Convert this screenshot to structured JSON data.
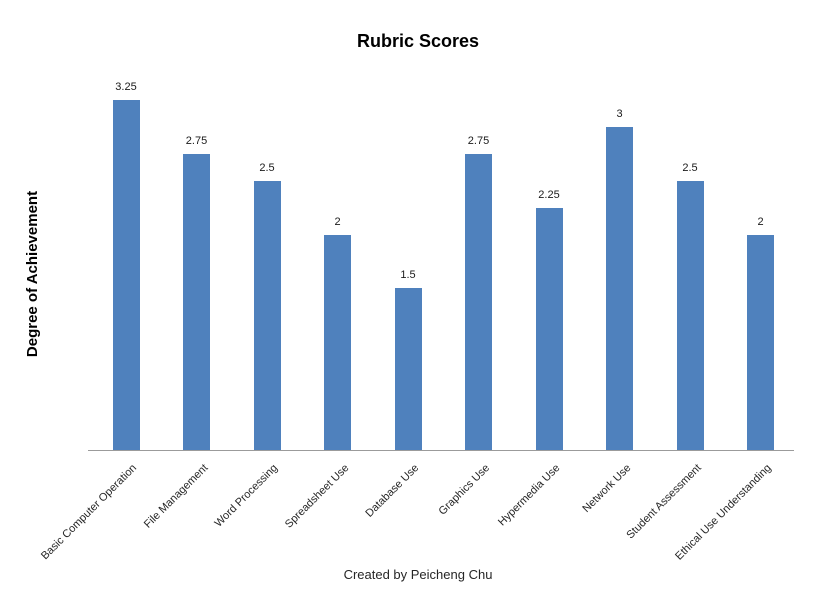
{
  "chart": {
    "title": "Rubric Scores",
    "y_axis_label": "Degree of Achievement",
    "caption": "Created by Peicheng Chu"
  },
  "chart_data": {
    "type": "bar",
    "title": "Rubric Scores",
    "xlabel": "",
    "ylabel": "Degree of Achievement",
    "caption": "Created by Peicheng Chu",
    "categories": [
      "Basic Computer Operation",
      "File Management",
      "Word Processing",
      "Spreadsheet Use",
      "Database Use",
      "Graphics Use",
      "Hypermedia Use",
      "Network Use",
      "Student Assessment",
      "Ethical Use Understanding"
    ],
    "values": [
      3.25,
      2.75,
      2.5,
      2,
      1.5,
      2.75,
      2.25,
      3,
      2.5,
      2
    ],
    "data_labels": [
      "3.25",
      "2.75",
      "2.5",
      "2",
      "1.5",
      "2.75",
      "2.25",
      "3",
      "2.5",
      "2"
    ],
    "ylim": [
      0,
      3.5
    ],
    "grid": false,
    "legend": false,
    "bar_color": "#4F81BD",
    "axis_line_color": "#9b9b9b",
    "label_color": "#262626"
  }
}
